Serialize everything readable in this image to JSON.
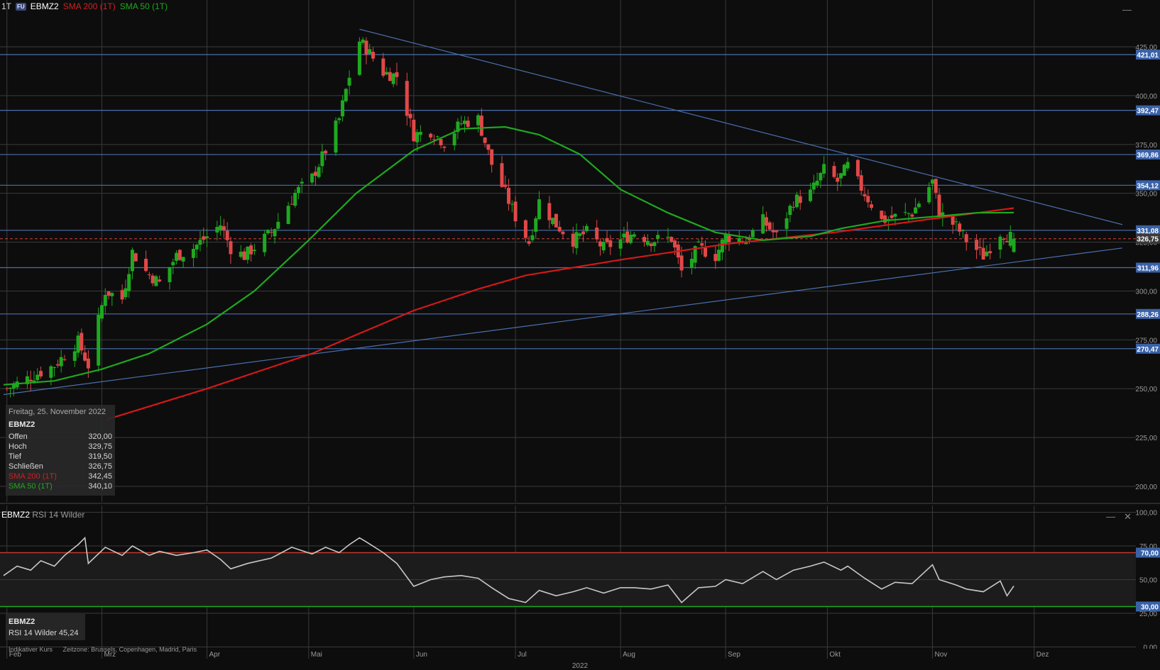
{
  "header": {
    "interval": "1T",
    "badge": "FU",
    "symbol": "EBMZ2",
    "sma200_label": "SMA 200 (1T)",
    "sma50_label": "SMA 50 (1T)"
  },
  "colors": {
    "background": "#0d0d0d",
    "grid": "#3a3a3a",
    "up_candle": "#1fa81f",
    "down_candle": "#e04848",
    "sma200": "#d41818",
    "sma50": "#1fa81f",
    "hline": "#4a6fae",
    "rsi_upper": "#c0392b",
    "rsi_lower": "#1fa81f",
    "rsi_line": "#c8c8c8",
    "label_bg": "#3a62a8"
  },
  "info_box": {
    "date": "Freitag, 25. November 2022",
    "symbol": "EBMZ2",
    "rows": [
      {
        "label": "Offen",
        "value": "320,00"
      },
      {
        "label": "Hoch",
        "value": "329,75"
      },
      {
        "label": "Tief",
        "value": "319,50"
      },
      {
        "label": "Schließen",
        "value": "326,75"
      },
      {
        "label": "SMA 200 (1T)",
        "value": "342,45"
      },
      {
        "label": "SMA 50 (1T)",
        "value": "340,10"
      }
    ]
  },
  "rsi_panel": {
    "symbol": "EBMZ2",
    "name": "RSI 14 Wilder",
    "box_value_label": "RSI 14 Wilder",
    "box_value": "45,24",
    "upper_level": 70,
    "lower_level": 30,
    "upper_label": "70,00",
    "lower_label": "30,00",
    "ticks": [
      "100,00",
      "75,00",
      "50,00",
      "25,00",
      "0,00"
    ]
  },
  "footer": {
    "note": "Indikativer Kurs",
    "timezone": "Zeitzone: Brussels, Copenhagen, Madrid, Paris",
    "year": "2022"
  },
  "controls": {
    "minimize": "—",
    "close": "✕"
  },
  "chart_data": [
    {
      "type": "candlestick",
      "title": "EBMZ2",
      "ylim": [
        190,
        440
      ],
      "y_ticks": [
        200,
        225,
        250,
        275,
        300,
        325,
        350,
        375,
        400,
        425
      ],
      "y_tick_labels": [
        "200,00",
        "225,00",
        "250,00",
        "275,00",
        "300,00",
        "325,00",
        "350,00",
        "375,00",
        "400,00",
        "425,00"
      ],
      "x_month_labels": [
        "Feb",
        "Mrz",
        "Apr",
        "Mai",
        "Jun",
        "Jul",
        "Aug",
        "Sep",
        "Okt",
        "Nov",
        "Dez"
      ],
      "x_month_dates": [
        "2022-02-01",
        "2022-03-01",
        "2022-04-01",
        "2022-05-01",
        "2022-06-01",
        "2022-07-01",
        "2022-08-01",
        "2022-09-01",
        "2022-10-01",
        "2022-11-01",
        "2022-12-01"
      ],
      "x_range": [
        "2022-01-31",
        "2022-12-31"
      ],
      "horizontal_levels": [
        {
          "value": 421.01,
          "label": "421,01"
        },
        {
          "value": 392.47,
          "label": "392,47"
        },
        {
          "value": 369.86,
          "label": "369,86"
        },
        {
          "value": 354.12,
          "label": "354,12"
        },
        {
          "value": 331.08,
          "label": "331,08"
        },
        {
          "value": 311.96,
          "label": "311,96"
        },
        {
          "value": 288.26,
          "label": "288,26"
        },
        {
          "value": 270.47,
          "label": "270,47"
        }
      ],
      "last_price": {
        "value": 326.75,
        "label": "326,75"
      },
      "trendlines": [
        {
          "from": [
            "2022-05-16",
            434
          ],
          "to": [
            "2022-12-27",
            334
          ]
        },
        {
          "from": [
            "2022-01-31",
            247
          ],
          "to": [
            "2022-12-27",
            322
          ]
        }
      ],
      "anchors": [
        [
          "2022-02-01",
          250
        ],
        [
          "2022-02-08",
          256
        ],
        [
          "2022-02-15",
          262
        ],
        [
          "2022-02-22",
          274
        ],
        [
          "2022-02-25",
          262
        ],
        [
          "2022-03-02",
          300
        ],
        [
          "2022-03-07",
          296
        ],
        [
          "2022-03-10",
          320
        ],
        [
          "2022-03-14",
          310
        ],
        [
          "2022-03-18",
          304
        ],
        [
          "2022-03-23",
          318
        ],
        [
          "2022-03-28",
          322
        ],
        [
          "2022-04-01",
          328
        ],
        [
          "2022-04-05",
          334
        ],
        [
          "2022-04-08",
          322
        ],
        [
          "2022-04-12",
          318
        ],
        [
          "2022-04-20",
          330
        ],
        [
          "2022-04-27",
          350
        ],
        [
          "2022-05-02",
          358
        ],
        [
          "2022-05-06",
          372
        ],
        [
          "2022-05-10",
          388
        ],
        [
          "2022-05-13",
          410
        ],
        [
          "2022-05-16",
          428
        ],
        [
          "2022-05-18",
          424
        ],
        [
          "2022-05-23",
          412
        ],
        [
          "2022-05-27",
          410
        ],
        [
          "2022-06-01",
          380
        ],
        [
          "2022-06-06",
          382
        ],
        [
          "2022-06-10",
          376
        ],
        [
          "2022-06-15",
          386
        ],
        [
          "2022-06-20",
          388
        ],
        [
          "2022-06-24",
          365
        ],
        [
          "2022-06-28",
          350
        ],
        [
          "2022-07-01",
          338
        ],
        [
          "2022-07-05",
          325
        ],
        [
          "2022-07-08",
          346
        ],
        [
          "2022-07-13",
          334
        ],
        [
          "2022-07-18",
          326
        ],
        [
          "2022-07-22",
          330
        ],
        [
          "2022-07-27",
          322
        ],
        [
          "2022-08-01",
          326
        ],
        [
          "2022-08-05",
          330
        ],
        [
          "2022-08-10",
          326
        ],
        [
          "2022-08-16",
          327
        ],
        [
          "2022-08-19",
          310
        ],
        [
          "2022-08-24",
          322
        ],
        [
          "2022-08-29",
          318
        ],
        [
          "2022-09-01",
          328
        ],
        [
          "2022-09-07",
          326
        ],
        [
          "2022-09-12",
          336
        ],
        [
          "2022-09-16",
          328
        ],
        [
          "2022-09-21",
          346
        ],
        [
          "2022-09-26",
          350
        ],
        [
          "2022-09-30",
          362
        ],
        [
          "2022-10-04",
          356
        ],
        [
          "2022-10-07",
          364
        ],
        [
          "2022-10-12",
          350
        ],
        [
          "2022-10-17",
          336
        ],
        [
          "2022-10-21",
          338
        ],
        [
          "2022-10-26",
          340
        ],
        [
          "2022-11-01",
          356
        ],
        [
          "2022-11-03",
          340
        ],
        [
          "2022-11-08",
          333
        ],
        [
          "2022-11-11",
          326
        ],
        [
          "2022-11-16",
          318
        ],
        [
          "2022-11-21",
          330
        ],
        [
          "2022-11-25",
          326.75
        ]
      ],
      "series": [
        {
          "name": "SMA 200 (1T)",
          "points": [
            [
              "2022-03-02",
              234
            ],
            [
              "2022-04-01",
              250
            ],
            [
              "2022-05-02",
              268
            ],
            [
              "2022-06-01",
              290
            ],
            [
              "2022-06-20",
              301
            ],
            [
              "2022-07-04",
              308
            ],
            [
              "2022-08-01",
              316
            ],
            [
              "2022-09-01",
              324
            ],
            [
              "2022-10-03",
              330
            ],
            [
              "2022-11-01",
              337
            ],
            [
              "2022-11-25",
              342.45
            ]
          ]
        },
        {
          "name": "SMA 50 (1T)",
          "points": [
            [
              "2022-01-31",
              252
            ],
            [
              "2022-02-15",
              254
            ],
            [
              "2022-03-01",
              260
            ],
            [
              "2022-03-15",
              268
            ],
            [
              "2022-04-01",
              283
            ],
            [
              "2022-04-15",
              300
            ],
            [
              "2022-05-01",
              326
            ],
            [
              "2022-05-15",
              350
            ],
            [
              "2022-06-01",
              372
            ],
            [
              "2022-06-15",
              383
            ],
            [
              "2022-06-28",
              384
            ],
            [
              "2022-07-08",
              380
            ],
            [
              "2022-07-20",
              370
            ],
            [
              "2022-08-01",
              352
            ],
            [
              "2022-08-15",
              340
            ],
            [
              "2022-08-29",
              330
            ],
            [
              "2022-09-12",
              326
            ],
            [
              "2022-09-26",
              328
            ],
            [
              "2022-10-05",
              332
            ],
            [
              "2022-10-18",
              336
            ],
            [
              "2022-11-01",
              338
            ],
            [
              "2022-11-14",
              340
            ],
            [
              "2022-11-25",
              340.1
            ]
          ]
        }
      ]
    },
    {
      "type": "line",
      "title": "RSI 14 Wilder",
      "ylim": [
        0,
        100
      ],
      "y_ticks": [
        0,
        25,
        50,
        75,
        100
      ],
      "series": [
        {
          "name": "RSI 14 Wilder",
          "points": [
            [
              "2022-01-31",
              53
            ],
            [
              "2022-02-04",
              60
            ],
            [
              "2022-02-08",
              57
            ],
            [
              "2022-02-11",
              64
            ],
            [
              "2022-02-15",
              60
            ],
            [
              "2022-02-18",
              68
            ],
            [
              "2022-02-22",
              76
            ],
            [
              "2022-02-24",
              81
            ],
            [
              "2022-02-25",
              62
            ],
            [
              "2022-03-02",
              74
            ],
            [
              "2022-03-07",
              68
            ],
            [
              "2022-03-10",
              75
            ],
            [
              "2022-03-15",
              68
            ],
            [
              "2022-03-18",
              71
            ],
            [
              "2022-03-23",
              68
            ],
            [
              "2022-03-28",
              70
            ],
            [
              "2022-04-01",
              72
            ],
            [
              "2022-04-05",
              65
            ],
            [
              "2022-04-08",
              58
            ],
            [
              "2022-04-13",
              62
            ],
            [
              "2022-04-20",
              66
            ],
            [
              "2022-04-26",
              74
            ],
            [
              "2022-05-02",
              69
            ],
            [
              "2022-05-06",
              74
            ],
            [
              "2022-05-10",
              70
            ],
            [
              "2022-05-13",
              76
            ],
            [
              "2022-05-16",
              81
            ],
            [
              "2022-05-18",
              78
            ],
            [
              "2022-05-23",
              70
            ],
            [
              "2022-05-27",
              62
            ],
            [
              "2022-06-01",
              45
            ],
            [
              "2022-06-06",
              50
            ],
            [
              "2022-06-10",
              52
            ],
            [
              "2022-06-15",
              53
            ],
            [
              "2022-06-20",
              51
            ],
            [
              "2022-06-24",
              44
            ],
            [
              "2022-06-29",
              36
            ],
            [
              "2022-07-04",
              33
            ],
            [
              "2022-07-08",
              42
            ],
            [
              "2022-07-13",
              38
            ],
            [
              "2022-07-18",
              41
            ],
            [
              "2022-07-22",
              44
            ],
            [
              "2022-07-27",
              40
            ],
            [
              "2022-08-01",
              44
            ],
            [
              "2022-08-05",
              44
            ],
            [
              "2022-08-10",
              43
            ],
            [
              "2022-08-15",
              46
            ],
            [
              "2022-08-19",
              33
            ],
            [
              "2022-08-24",
              44
            ],
            [
              "2022-08-29",
              45
            ],
            [
              "2022-09-01",
              50
            ],
            [
              "2022-09-06",
              47
            ],
            [
              "2022-09-12",
              56
            ],
            [
              "2022-09-16",
              50
            ],
            [
              "2022-09-21",
              57
            ],
            [
              "2022-09-26",
              60
            ],
            [
              "2022-09-30",
              63
            ],
            [
              "2022-10-05",
              57
            ],
            [
              "2022-10-07",
              60
            ],
            [
              "2022-10-12",
              51
            ],
            [
              "2022-10-17",
              43
            ],
            [
              "2022-10-21",
              48
            ],
            [
              "2022-10-26",
              47
            ],
            [
              "2022-11-01",
              61
            ],
            [
              "2022-11-03",
              50
            ],
            [
              "2022-11-08",
              46
            ],
            [
              "2022-11-11",
              43
            ],
            [
              "2022-11-16",
              41
            ],
            [
              "2022-11-21",
              49
            ],
            [
              "2022-11-23",
              38
            ],
            [
              "2022-11-25",
              45.24
            ]
          ]
        }
      ]
    }
  ]
}
